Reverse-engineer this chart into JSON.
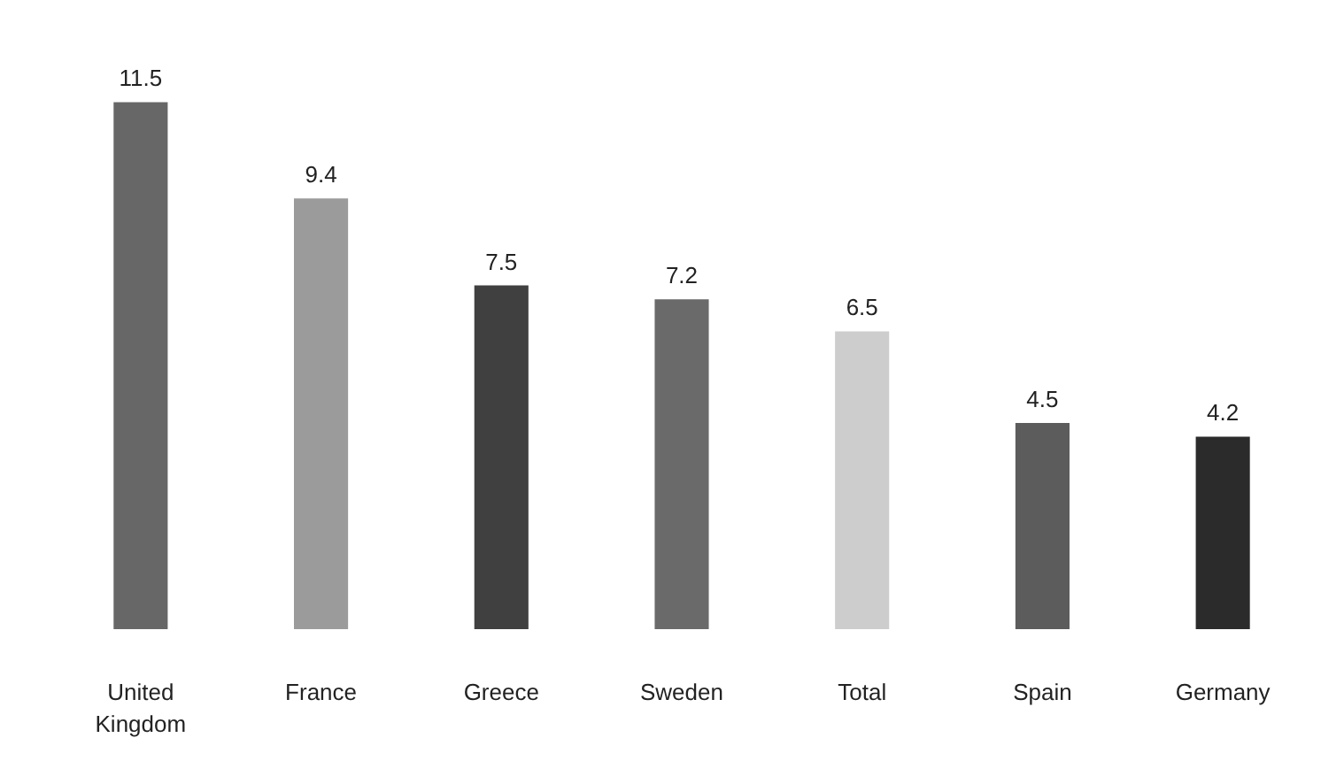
{
  "chart_data": {
    "type": "bar",
    "categories": [
      "United Kingdom",
      "France",
      "Greece",
      "Sweden",
      "Total",
      "Spain",
      "Germany"
    ],
    "values": [
      11.5,
      9.4,
      7.5,
      7.2,
      6.5,
      4.5,
      4.2
    ],
    "colors": [
      "#676767",
      "#9b9b9b",
      "#404040",
      "#6a6a6a",
      "#cdcdcd",
      "#5c5c5c",
      "#2b2b2b"
    ],
    "data_labels": true
  }
}
